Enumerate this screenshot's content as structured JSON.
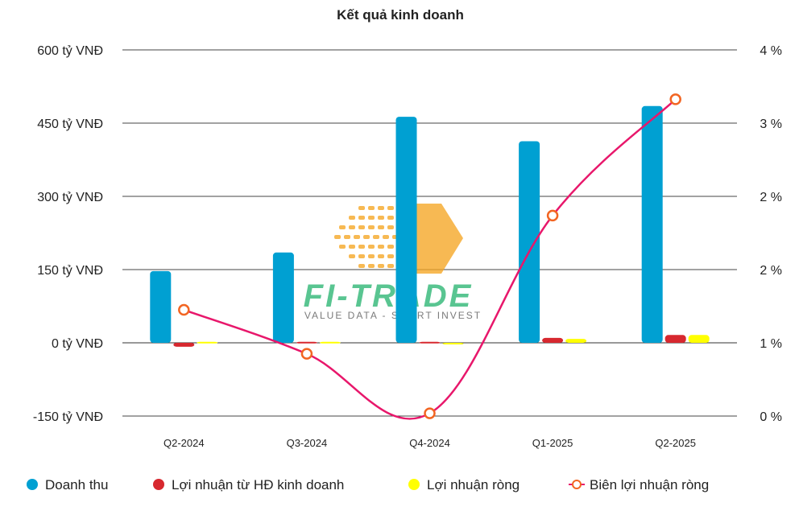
{
  "chart_data": {
    "type": "bar",
    "title": "Kết quả kinh doanh",
    "categories": [
      "Q2-2024",
      "Q3-2024",
      "Q4-2024",
      "Q1-2025",
      "Q2-2025"
    ],
    "y_left": {
      "ticks": [
        600,
        450,
        300,
        150,
        0,
        -150
      ],
      "tick_labels": [
        "600 tỷ VNĐ",
        "450 tỷ VNĐ",
        "300 tỷ VNĐ",
        "150 tỷ VNĐ",
        "0 tỷ VNĐ",
        "-150 tỷ VNĐ"
      ],
      "range": [
        -150,
        600
      ]
    },
    "y_right": {
      "tick_labels": [
        "4 %",
        "3 %",
        "2 %",
        "2 %",
        "1 %",
        "0 %"
      ],
      "range": [
        0,
        4
      ]
    },
    "series": [
      {
        "name": "Doanh thu",
        "kind": "bar",
        "axis": "left",
        "color": "#00a0d2",
        "values": [
          147,
          185,
          463,
          413,
          485
        ]
      },
      {
        "name": "Lợi nhuận từ HĐ kinh doanh",
        "kind": "bar",
        "axis": "left",
        "color": "#d7282f",
        "values": [
          -8,
          2,
          2,
          10,
          16
        ]
      },
      {
        "name": "Lợi nhuận ròng",
        "kind": "bar",
        "axis": "left",
        "color": "#ffff00",
        "values": [
          2,
          2,
          0,
          8,
          16
        ]
      },
      {
        "name": "Biên lợi nhuận ròng",
        "kind": "line",
        "axis": "right",
        "color": "#e8176b",
        "marker_color": "#f26522",
        "values": [
          1.16,
          0.68,
          0.03,
          2.19,
          3.46
        ]
      }
    ],
    "grid": "horizontal",
    "legend_position": "bottom"
  },
  "watermark": {
    "brand": "FI-TRADE",
    "tagline": "VALUE DATA - SMART INVEST",
    "colors": [
      "#f5a623",
      "#2bb673"
    ]
  }
}
